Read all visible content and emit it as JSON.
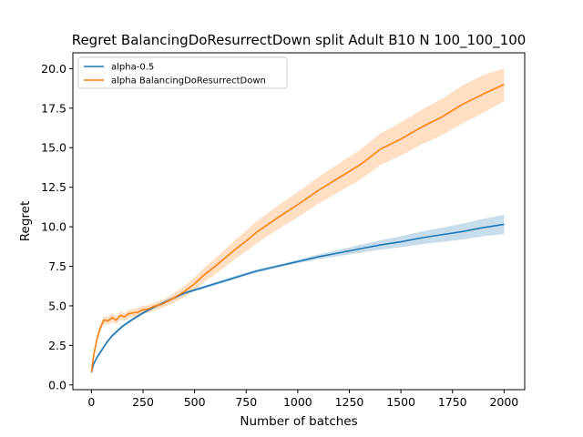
{
  "chart_data": {
    "type": "line",
    "title": "Regret BalancingDoResurrectDown split Adult B10 N 100_100_100",
    "xlabel": "Number of batches",
    "ylabel": "Regret",
    "xlim": [
      -90,
      2100
    ],
    "ylim": [
      -0.3,
      21.0
    ],
    "xticks": [
      0,
      250,
      500,
      750,
      1000,
      1250,
      1500,
      1750,
      2000
    ],
    "yticks": [
      0.0,
      2.5,
      5.0,
      7.5,
      10.0,
      12.5,
      15.0,
      17.5,
      20.0
    ],
    "xtick_labels": [
      "0",
      "250",
      "500",
      "750",
      "1000",
      "1250",
      "1500",
      "1750",
      "2000"
    ],
    "ytick_labels": [
      "0.0",
      "2.5",
      "5.0",
      "7.5",
      "10.0",
      "12.5",
      "15.0",
      "17.5",
      "20.0"
    ],
    "grid": false,
    "legend_position": "top-left",
    "series": [
      {
        "name": "alpha-0.5",
        "color": "#1f77b4",
        "x": [
          0,
          10,
          25,
          50,
          75,
          100,
          150,
          200,
          250,
          300,
          350,
          400,
          450,
          500,
          600,
          700,
          800,
          900,
          1000,
          1100,
          1200,
          1300,
          1400,
          1500,
          1600,
          1700,
          1800,
          1900,
          2000
        ],
        "y": [
          0.8,
          1.3,
          1.7,
          2.2,
          2.7,
          3.1,
          3.7,
          4.15,
          4.55,
          4.9,
          5.2,
          5.5,
          5.8,
          6.0,
          6.4,
          6.8,
          7.2,
          7.5,
          7.8,
          8.1,
          8.35,
          8.6,
          8.85,
          9.05,
          9.3,
          9.5,
          9.7,
          9.95,
          10.15
        ],
        "lower": [
          0.7,
          1.2,
          1.6,
          2.1,
          2.6,
          3.0,
          3.6,
          4.05,
          4.45,
          4.8,
          5.1,
          5.4,
          5.7,
          5.9,
          6.3,
          6.7,
          7.1,
          7.4,
          7.7,
          7.95,
          8.15,
          8.35,
          8.55,
          8.7,
          8.9,
          9.05,
          9.2,
          9.4,
          9.55
        ],
        "upper": [
          0.9,
          1.4,
          1.8,
          2.3,
          2.8,
          3.2,
          3.8,
          4.25,
          4.65,
          5.0,
          5.3,
          5.6,
          5.9,
          6.1,
          6.5,
          6.9,
          7.3,
          7.6,
          7.9,
          8.25,
          8.55,
          8.85,
          9.15,
          9.4,
          9.7,
          9.95,
          10.2,
          10.5,
          10.75
        ]
      },
      {
        "name": "alpha BalancingDoResurrectDown",
        "color": "#ff7f0e",
        "x": [
          0,
          10,
          25,
          40,
          60,
          80,
          100,
          120,
          140,
          160,
          180,
          200,
          225,
          250,
          275,
          300,
          325,
          350,
          400,
          450,
          500,
          550,
          600,
          650,
          700,
          750,
          800,
          900,
          1000,
          1100,
          1200,
          1300,
          1400,
          1500,
          1600,
          1700,
          1800,
          1900,
          2000
        ],
        "y": [
          0.8,
          1.8,
          2.8,
          3.5,
          4.1,
          4.05,
          4.25,
          4.1,
          4.4,
          4.3,
          4.5,
          4.55,
          4.6,
          4.75,
          4.8,
          4.95,
          5.05,
          5.15,
          5.5,
          5.9,
          6.4,
          7.0,
          7.5,
          8.05,
          8.6,
          9.1,
          9.65,
          10.55,
          11.4,
          12.3,
          13.1,
          13.9,
          14.9,
          15.55,
          16.3,
          16.95,
          17.75,
          18.4,
          19.0
        ],
        "lower": [
          0.7,
          1.6,
          2.6,
          3.3,
          3.85,
          3.8,
          3.95,
          3.85,
          4.15,
          4.05,
          4.25,
          4.3,
          4.35,
          4.5,
          4.55,
          4.7,
          4.8,
          4.9,
          5.2,
          5.55,
          6.0,
          6.55,
          7.0,
          7.5,
          8.0,
          8.45,
          8.95,
          9.8,
          10.6,
          11.45,
          12.2,
          12.95,
          13.9,
          14.5,
          15.2,
          15.8,
          16.55,
          17.2,
          17.95
        ],
        "upper": [
          0.9,
          2.0,
          3.0,
          3.7,
          4.35,
          4.3,
          4.55,
          4.35,
          4.65,
          4.55,
          4.75,
          4.8,
          4.85,
          5.0,
          5.05,
          5.2,
          5.3,
          5.4,
          5.8,
          6.25,
          6.8,
          7.45,
          8.0,
          8.6,
          9.2,
          9.75,
          10.35,
          11.3,
          12.2,
          13.15,
          14.0,
          14.85,
          15.9,
          16.6,
          17.4,
          18.1,
          18.95,
          19.6,
          20.0
        ]
      }
    ]
  }
}
